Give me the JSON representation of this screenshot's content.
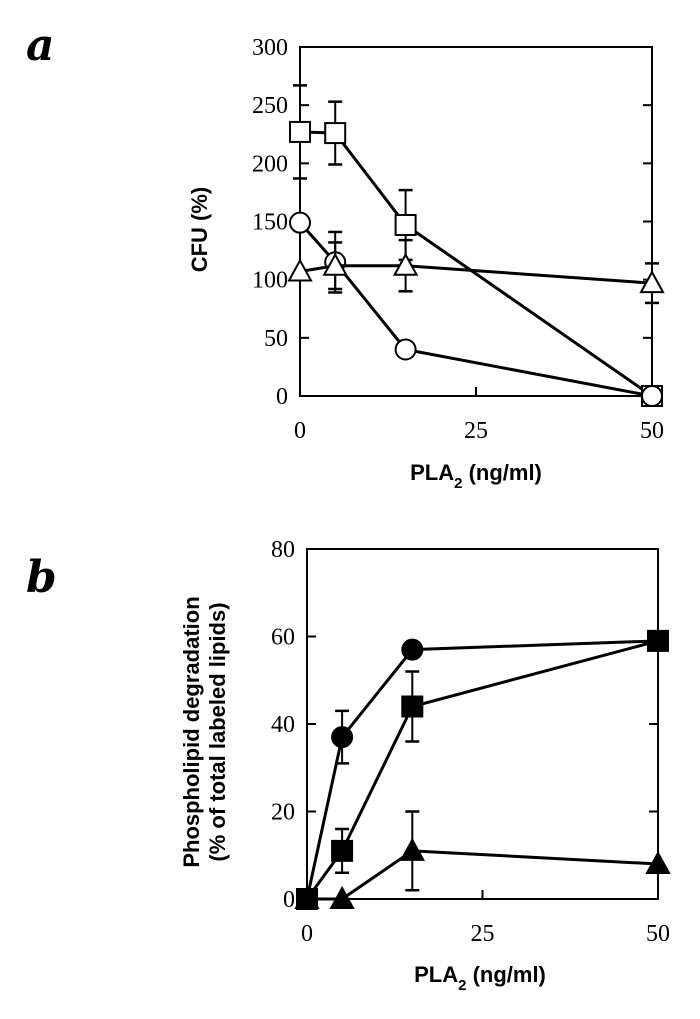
{
  "chart_data": [
    {
      "panel": "a",
      "type": "line",
      "x": [
        0,
        5,
        15,
        50
      ],
      "xticks": [
        0,
        25,
        50
      ],
      "yticks": [
        0,
        50,
        100,
        150,
        200,
        250,
        300
      ],
      "xlim": [
        0,
        50
      ],
      "ylim": [
        0,
        300
      ],
      "xlabel": {
        "main": "PLA",
        "sub": "2",
        "unit": " (ng/ml)"
      },
      "ylabel": "CFU (%)",
      "series": [
        {
          "marker": "square-open",
          "values": [
            227,
            226,
            147,
            0
          ],
          "err": [
            40,
            27,
            30,
            0
          ]
        },
        {
          "marker": "circle-open",
          "values": [
            149,
            115,
            40,
            0
          ],
          "err": [
            0,
            26,
            0,
            0
          ]
        },
        {
          "marker": "triangle-open",
          "values": [
            107,
            112,
            112,
            97
          ],
          "err": [
            0,
            20,
            22,
            17
          ]
        }
      ]
    },
    {
      "panel": "b",
      "type": "line",
      "x": [
        0,
        5,
        15,
        50
      ],
      "xticks": [
        0,
        25,
        50
      ],
      "yticks": [
        0,
        20,
        40,
        60,
        80
      ],
      "xlim": [
        0,
        50
      ],
      "ylim": [
        0,
        80
      ],
      "xlabel": {
        "main": "PLA",
        "sub": "2",
        "unit": " (ng/ml)"
      },
      "ylabel": [
        "Phospholipid degradation",
        "(% of total labeled lipids)"
      ],
      "series": [
        {
          "marker": "circle-filled",
          "values": [
            0,
            37,
            57,
            59
          ],
          "err": [
            0,
            6,
            0,
            0
          ]
        },
        {
          "marker": "square-filled",
          "values": [
            0,
            11,
            44,
            59
          ],
          "err": [
            0,
            5,
            8,
            0
          ]
        },
        {
          "marker": "triangle-filled",
          "values": [
            0,
            0,
            11,
            8
          ],
          "err": [
            0,
            0,
            9,
            0
          ]
        }
      ]
    }
  ]
}
